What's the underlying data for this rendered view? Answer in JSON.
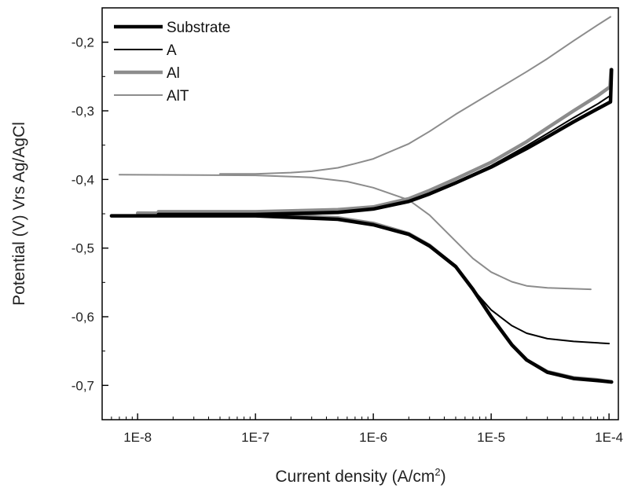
{
  "chart_data": {
    "type": "line",
    "xscale": "log",
    "xlabel": "Current density (A/cm",
    "xlabel_sup": "2",
    "xlabel_close": ")",
    "ylabel": "Potential (V) Vrs Ag/AgCl",
    "xlim": [
      5e-09,
      0.00012
    ],
    "ylim": [
      -0.75,
      -0.15
    ],
    "x_ticks": [
      {
        "value": 1e-08,
        "label": "1E-8"
      },
      {
        "value": 1e-07,
        "label": "1E-7"
      },
      {
        "value": 1e-06,
        "label": "1E-6"
      },
      {
        "value": 1e-05,
        "label": "1E-5"
      },
      {
        "value": 0.0001,
        "label": "1E-4"
      }
    ],
    "y_ticks": [
      {
        "value": -0.7,
        "label": "-0,7"
      },
      {
        "value": -0.6,
        "label": "-0,6"
      },
      {
        "value": -0.5,
        "label": "-0,5"
      },
      {
        "value": -0.4,
        "label": "-0,4"
      },
      {
        "value": -0.3,
        "label": "-0,3"
      },
      {
        "value": -0.2,
        "label": "-0,2"
      }
    ],
    "grid": false,
    "legend_position": "top-left",
    "series": [
      {
        "name": "Substrate",
        "color": "#000000",
        "style": "thick",
        "cathodic": [
          [
            6e-09,
            -0.453
          ],
          [
            1e-07,
            -0.453
          ],
          [
            5e-07,
            -0.458
          ],
          [
            1e-06,
            -0.466
          ],
          [
            2e-06,
            -0.48
          ],
          [
            3e-06,
            -0.497
          ],
          [
            5e-06,
            -0.527
          ],
          [
            7e-06,
            -0.56
          ],
          [
            1e-05,
            -0.6
          ],
          [
            1.5e-05,
            -0.641
          ],
          [
            2e-05,
            -0.663
          ],
          [
            3e-05,
            -0.681
          ],
          [
            5e-05,
            -0.69
          ],
          [
            8e-05,
            -0.693
          ],
          [
            0.000105,
            -0.695
          ]
        ],
        "anodic": [
          [
            1.5e-08,
            -0.451
          ],
          [
            1e-07,
            -0.451
          ],
          [
            5e-07,
            -0.448
          ],
          [
            1e-06,
            -0.443
          ],
          [
            2e-06,
            -0.432
          ],
          [
            3e-06,
            -0.421
          ],
          [
            5e-06,
            -0.405
          ],
          [
            1e-05,
            -0.382
          ],
          [
            2e-05,
            -0.355
          ],
          [
            3e-05,
            -0.338
          ],
          [
            5e-05,
            -0.316
          ],
          [
            8e-05,
            -0.297
          ],
          [
            0.000103,
            -0.287
          ],
          [
            0.000105,
            -0.24
          ]
        ]
      },
      {
        "name": "A",
        "color": "#000000",
        "style": "thin",
        "cathodic": [
          [
            6e-09,
            -0.452
          ],
          [
            1e-07,
            -0.452
          ],
          [
            5e-07,
            -0.457
          ],
          [
            1e-06,
            -0.465
          ],
          [
            2e-06,
            -0.48
          ],
          [
            3e-06,
            -0.497
          ],
          [
            5e-06,
            -0.528
          ],
          [
            7e-06,
            -0.56
          ],
          [
            1e-05,
            -0.59
          ],
          [
            1.5e-05,
            -0.613
          ],
          [
            2e-05,
            -0.624
          ],
          [
            3e-05,
            -0.632
          ],
          [
            5e-05,
            -0.636
          ],
          [
            0.0001,
            -0.639
          ]
        ],
        "anodic": [
          [
            1.5e-08,
            -0.45
          ],
          [
            1e-07,
            -0.45
          ],
          [
            5e-07,
            -0.447
          ],
          [
            1e-06,
            -0.442
          ],
          [
            2e-06,
            -0.431
          ],
          [
            3e-06,
            -0.42
          ],
          [
            5e-06,
            -0.404
          ],
          [
            1e-05,
            -0.38
          ],
          [
            2e-05,
            -0.351
          ],
          [
            3e-05,
            -0.333
          ],
          [
            5e-05,
            -0.31
          ],
          [
            8e-05,
            -0.29
          ],
          [
            0.000102,
            -0.278
          ],
          [
            0.000104,
            -0.25
          ]
        ]
      },
      {
        "name": "Al",
        "color": "#8c8c8c",
        "style": "thick",
        "cathodic": [
          [
            1e-08,
            -0.449
          ],
          [
            1e-07,
            -0.45
          ],
          [
            5e-07,
            -0.456
          ],
          [
            1e-06,
            -0.464
          ],
          [
            2e-06,
            -0.479
          ],
          [
            3e-06,
            -0.496
          ],
          [
            5e-06,
            -0.527
          ],
          [
            7e-06,
            -0.56
          ],
          [
            1e-05,
            -0.6
          ],
          [
            1.5e-05,
            -0.641
          ],
          [
            2e-05,
            -0.663
          ],
          [
            3e-05,
            -0.68
          ],
          [
            5e-05,
            -0.689
          ],
          [
            8e-05,
            -0.692
          ],
          [
            0.000105,
            -0.695
          ]
        ],
        "anodic": [
          [
            1.5e-08,
            -0.447
          ],
          [
            1e-07,
            -0.447
          ],
          [
            5e-07,
            -0.444
          ],
          [
            1e-06,
            -0.44
          ],
          [
            2e-06,
            -0.428
          ],
          [
            3e-06,
            -0.416
          ],
          [
            5e-06,
            -0.399
          ],
          [
            1e-05,
            -0.375
          ],
          [
            2e-05,
            -0.345
          ],
          [
            3e-05,
            -0.325
          ],
          [
            5e-05,
            -0.3
          ],
          [
            8e-05,
            -0.278
          ],
          [
            0.000102,
            -0.265
          ],
          [
            0.000104,
            -0.24
          ]
        ]
      },
      {
        "name": "AlT",
        "color": "#8c8c8c",
        "style": "thin",
        "cathodic": [
          [
            7e-09,
            -0.393
          ],
          [
            1e-07,
            -0.394
          ],
          [
            3e-07,
            -0.397
          ],
          [
            6e-07,
            -0.403
          ],
          [
            1e-06,
            -0.412
          ],
          [
            2e-06,
            -0.43
          ],
          [
            3e-06,
            -0.452
          ],
          [
            5e-06,
            -0.49
          ],
          [
            7e-06,
            -0.515
          ],
          [
            1e-05,
            -0.535
          ],
          [
            1.5e-05,
            -0.549
          ],
          [
            2e-05,
            -0.555
          ],
          [
            3e-05,
            -0.558
          ],
          [
            7e-05,
            -0.56
          ]
        ],
        "anodic": [
          [
            5e-08,
            -0.392
          ],
          [
            1e-07,
            -0.392
          ],
          [
            2e-07,
            -0.39
          ],
          [
            3e-07,
            -0.388
          ],
          [
            5e-07,
            -0.383
          ],
          [
            7e-07,
            -0.377
          ],
          [
            1e-06,
            -0.37
          ],
          [
            2e-06,
            -0.348
          ],
          [
            3e-06,
            -0.33
          ],
          [
            5e-06,
            -0.305
          ],
          [
            1e-05,
            -0.274
          ],
          [
            2e-05,
            -0.243
          ],
          [
            3e-05,
            -0.224
          ],
          [
            5e-05,
            -0.198
          ],
          [
            8e-05,
            -0.175
          ],
          [
            0.000103,
            -0.163
          ]
        ]
      }
    ]
  }
}
